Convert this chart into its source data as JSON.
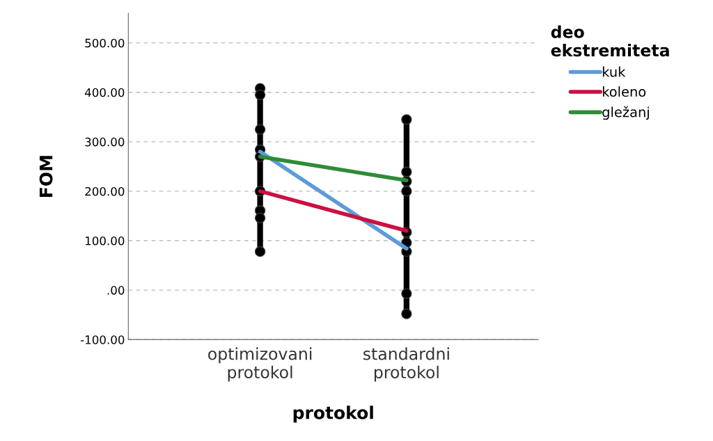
{
  "chart_data": {
    "type": "line",
    "xlabel": "protokol",
    "ylabel": "FOM",
    "legend_title": "deo\nekstremiteta",
    "categories": [
      "optimizovani\nprotokol",
      "standardni\nprotokol"
    ],
    "ylim": [
      -100,
      560
    ],
    "yticks": [
      {
        "value": -100,
        "label": "-100.00"
      },
      {
        "value": 0,
        "label": ".00"
      },
      {
        "value": 100,
        "label": "100.00"
      },
      {
        "value": 200,
        "label": "200.00"
      },
      {
        "value": 300,
        "label": "300.00"
      },
      {
        "value": 400,
        "label": "400.00"
      },
      {
        "value": 500,
        "label": "500.00"
      }
    ],
    "grid": "y",
    "legend": "top right",
    "marker": "none",
    "line_style": "solid",
    "series": [
      {
        "color": "#000000",
        "marker": "circle",
        "x": [
          "optimizovani\nprotokol",
          "optimizovani\nprotokol",
          "optimizovani\nprotokol",
          "optimizovani\nprotokol",
          "optimizovani\nprotokol",
          "optimizovani\nprotokol",
          "optimizovani\nprotokol",
          "optimizovani\nprotokol",
          "optimizovani\nprotokol"
        ],
        "values": [
          408,
          395,
          325,
          284,
          270,
          200,
          161,
          146,
          78
        ]
      },
      {
        "color": "#000000",
        "marker": "circle",
        "x": [
          "standardni\nprotokol",
          "standardni\nprotokol",
          "standardni\nprotokol",
          "standardni\nprotokol",
          "standardni\nprotokol",
          "standardni\nprotokol",
          "standardni\nprotokol",
          "standardni\nprotokol",
          "standardni\nprotokol"
        ],
        "values": [
          345,
          239,
          220,
          200,
          117,
          96,
          78,
          -7,
          -48
        ]
      },
      {
        "name": "kuk",
        "color": "#5b9bd9",
        "values": [
          280,
          84
        ]
      },
      {
        "name": "koleno",
        "color": "#cc1040",
        "values": [
          200,
          120
        ]
      },
      {
        "name": "gležanj",
        "color": "#2e8b36",
        "values": [
          270,
          222
        ]
      }
    ]
  }
}
